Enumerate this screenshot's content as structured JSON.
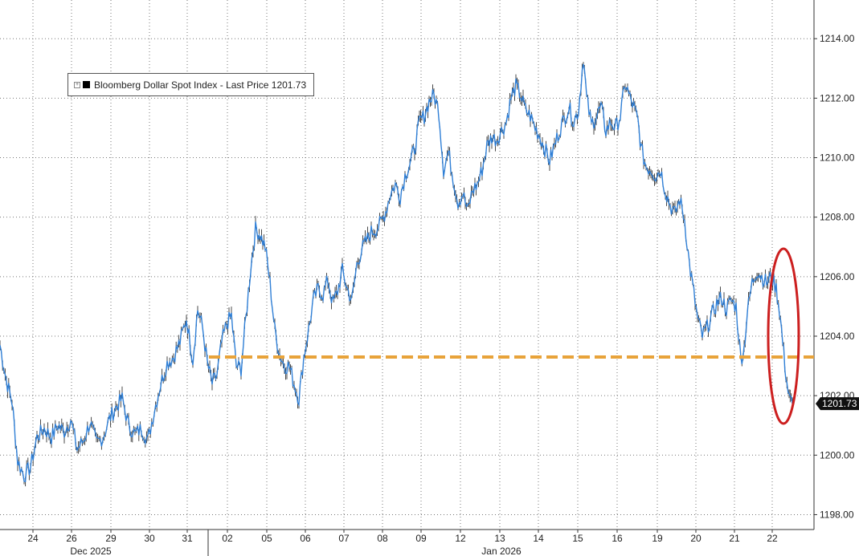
{
  "chart_data": {
    "type": "line",
    "title": "",
    "legend": {
      "label": "Bloomberg Dollar Spot Index - Last Price",
      "last_value": "1201.73",
      "placement": "top-left"
    },
    "y_axis": {
      "ylim": [
        1197.5,
        1215.3
      ],
      "ticks": [
        "1214.00",
        "1212.00",
        "1210.00",
        "1208.00",
        "1206.00",
        "1204.00",
        "1202.00",
        "1200.00",
        "1198.00"
      ],
      "side": "right"
    },
    "x_axis": {
      "tick_labels": [
        "24",
        "26",
        "29",
        "30",
        "31",
        "02",
        "05",
        "06",
        "07",
        "08",
        "09",
        "12",
        "13",
        "14",
        "15",
        "16",
        "19",
        "20",
        "21",
        "22"
      ],
      "month_labels": [
        "Dec 2025",
        "Jan 2026"
      ]
    },
    "grid": true,
    "series": [
      {
        "color": "#2f7fd6",
        "points": [
          [
            0,
            1203.7
          ],
          [
            8,
            1202.5
          ],
          [
            15,
            1201.8
          ],
          [
            22,
            1199.8
          ],
          [
            30,
            1199.3
          ],
          [
            38,
            1199.6
          ],
          [
            46,
            1200.6
          ],
          [
            55,
            1200.9
          ],
          [
            64,
            1200.6
          ],
          [
            72,
            1201.0
          ],
          [
            80,
            1200.8
          ],
          [
            88,
            1201.2
          ],
          [
            96,
            1200.2
          ],
          [
            104,
            1200.5
          ],
          [
            112,
            1201.1
          ],
          [
            120,
            1200.4
          ],
          [
            128,
            1200.6
          ],
          [
            136,
            1201.2
          ],
          [
            144,
            1201.6
          ],
          [
            152,
            1201.9
          ],
          [
            160,
            1201.0
          ],
          [
            168,
            1200.7
          ],
          [
            176,
            1200.9
          ],
          [
            184,
            1200.5
          ],
          [
            192,
            1201.5
          ],
          [
            200,
            1202.4
          ],
          [
            208,
            1203.1
          ],
          [
            216,
            1203.3
          ],
          [
            224,
            1203.8
          ],
          [
            232,
            1204.6
          ],
          [
            240,
            1203.2
          ],
          [
            246,
            1204.9
          ],
          [
            252,
            1204.3
          ],
          [
            258,
            1203.1
          ],
          [
            264,
            1202.4
          ],
          [
            270,
            1202.7
          ],
          [
            276,
            1203.8
          ],
          [
            282,
            1204.4
          ],
          [
            288,
            1204.7
          ],
          [
            294,
            1203.0
          ],
          [
            300,
            1202.9
          ],
          [
            306,
            1204.6
          ],
          [
            312,
            1206.3
          ],
          [
            318,
            1207.6
          ],
          [
            324,
            1207.4
          ],
          [
            330,
            1207.0
          ],
          [
            336,
            1205.8
          ],
          [
            342,
            1204.2
          ],
          [
            348,
            1203.4
          ],
          [
            354,
            1203.0
          ],
          [
            360,
            1203.0
          ],
          [
            366,
            1202.4
          ],
          [
            372,
            1201.9
          ],
          [
            378,
            1203.3
          ],
          [
            384,
            1204.2
          ],
          [
            390,
            1205.2
          ],
          [
            396,
            1205.6
          ],
          [
            402,
            1205.4
          ],
          [
            408,
            1205.9
          ],
          [
            414,
            1205.1
          ],
          [
            420,
            1205.5
          ],
          [
            426,
            1206.2
          ],
          [
            432,
            1205.6
          ],
          [
            438,
            1205.2
          ],
          [
            444,
            1206.4
          ],
          [
            450,
            1206.9
          ],
          [
            456,
            1207.2
          ],
          [
            462,
            1207.5
          ],
          [
            468,
            1207.6
          ],
          [
            474,
            1207.8
          ],
          [
            480,
            1208.2
          ],
          [
            486,
            1208.8
          ],
          [
            492,
            1209.1
          ],
          [
            498,
            1208.7
          ],
          [
            504,
            1209.4
          ],
          [
            510,
            1209.8
          ],
          [
            516,
            1210.3
          ],
          [
            522,
            1211.2
          ],
          [
            528,
            1211.4
          ],
          [
            534,
            1211.9
          ],
          [
            540,
            1212.1
          ],
          [
            546,
            1211.6
          ],
          [
            552,
            1209.6
          ],
          [
            558,
            1210.2
          ],
          [
            564,
            1209.3
          ],
          [
            570,
            1208.5
          ],
          [
            576,
            1208.8
          ],
          [
            582,
            1208.2
          ],
          [
            588,
            1208.9
          ],
          [
            594,
            1209.1
          ],
          [
            600,
            1209.6
          ],
          [
            606,
            1210.4
          ],
          [
            612,
            1210.7
          ],
          [
            618,
            1210.6
          ],
          [
            624,
            1210.9
          ],
          [
            630,
            1211.2
          ],
          [
            636,
            1212.0
          ],
          [
            642,
            1212.4
          ],
          [
            648,
            1212.1
          ],
          [
            654,
            1211.6
          ],
          [
            660,
            1211.4
          ],
          [
            666,
            1211.0
          ],
          [
            672,
            1210.7
          ],
          [
            678,
            1210.3
          ],
          [
            684,
            1209.9
          ],
          [
            690,
            1210.4
          ],
          [
            696,
            1210.9
          ],
          [
            702,
            1211.3
          ],
          [
            708,
            1211.7
          ],
          [
            714,
            1211.2
          ],
          [
            720,
            1211.6
          ],
          [
            726,
            1213.4
          ],
          [
            730,
            1212.0
          ],
          [
            736,
            1211.1
          ],
          [
            742,
            1211.4
          ],
          [
            748,
            1211.7
          ],
          [
            754,
            1210.9
          ],
          [
            760,
            1211.2
          ],
          [
            766,
            1211.0
          ],
          [
            772,
            1211.4
          ],
          [
            778,
            1212.5
          ],
          [
            784,
            1212.0
          ],
          [
            790,
            1211.6
          ],
          [
            794,
            1211.2
          ],
          [
            798,
            1210.3
          ],
          [
            804,
            1209.7
          ],
          [
            810,
            1209.6
          ],
          [
            816,
            1209.4
          ],
          [
            822,
            1209.6
          ],
          [
            828,
            1208.9
          ],
          [
            834,
            1208.4
          ],
          [
            840,
            1208.1
          ],
          [
            846,
            1208.6
          ],
          [
            852,
            1207.9
          ],
          [
            858,
            1206.4
          ],
          [
            862,
            1205.7
          ],
          [
            868,
            1204.6
          ],
          [
            874,
            1204.0
          ],
          [
            880,
            1204.3
          ],
          [
            886,
            1204.7
          ],
          [
            892,
            1205.1
          ],
          [
            898,
            1205.3
          ],
          [
            904,
            1204.9
          ],
          [
            910,
            1205.2
          ],
          [
            916,
            1205.0
          ],
          [
            922,
            1203.2
          ],
          [
            926,
            1203.6
          ],
          [
            930,
            1204.8
          ],
          [
            936,
            1205.8
          ],
          [
            942,
            1206.2
          ],
          [
            948,
            1206.0
          ],
          [
            954,
            1205.8
          ],
          [
            960,
            1206.0
          ],
          [
            966,
            1205.6
          ],
          [
            970,
            1204.9
          ],
          [
            974,
            1203.8
          ],
          [
            978,
            1202.7
          ],
          [
            982,
            1201.9
          ],
          [
            986,
            1201.73
          ]
        ]
      }
    ],
    "annotations": [
      {
        "type": "horizontal-line",
        "y": 1203.3,
        "color": "#e8a33a",
        "style": "dashed"
      },
      {
        "type": "ellipse",
        "x": 975,
        "y": 1204.0,
        "color": "#cc1f1f"
      }
    ]
  }
}
